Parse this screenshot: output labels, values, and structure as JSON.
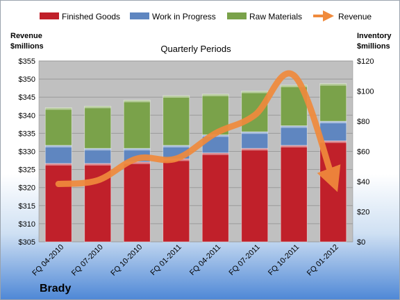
{
  "company": "Brady",
  "colors": {
    "finished_goods": "#c0202a",
    "work_in_progress": "#5f86c0",
    "raw_materials": "#7aa24a",
    "revenue": "#f08a3c",
    "plot_background": "#c0c0c0"
  },
  "chart_data": {
    "type": "bar",
    "title": "Quarterly Periods",
    "y_left_label": [
      "Revenue",
      "$millions"
    ],
    "y_right_label": [
      "Inventory",
      "$millions"
    ],
    "categories": [
      "FQ 04-2010",
      "FQ 07-2010",
      "FQ 10-2010",
      "FQ 01-2011",
      "FQ 04-2011",
      "FQ 07-2011",
      "FQ 10-2011",
      "FQ 01-2012"
    ],
    "stacked": true,
    "series": [
      {
        "name": "Finished Goods",
        "axis": "right",
        "kind": "bar",
        "values": [
          52,
          52,
          53,
          55,
          59,
          62,
          64,
          67
        ]
      },
      {
        "name": "Work in Progress",
        "axis": "right",
        "kind": "bar",
        "values": [
          12,
          10,
          9,
          9,
          12,
          11,
          13,
          13
        ]
      },
      {
        "name": "Raw Materials",
        "axis": "right",
        "kind": "bar",
        "values": [
          25,
          28,
          32,
          33,
          27,
          27,
          27,
          25
        ]
      },
      {
        "name": "Revenue",
        "axis": "left",
        "kind": "line-arrow",
        "values": [
          321,
          322,
          328,
          328,
          335,
          340,
          351,
          322
        ]
      }
    ],
    "y_left": {
      "min": 305,
      "max": 355,
      "step": 5,
      "tick_labels": [
        "$305",
        "$310",
        "$315",
        "$320",
        "$325",
        "$330",
        "$335",
        "$340",
        "$345",
        "$350",
        "$355"
      ]
    },
    "y_right": {
      "min": 0,
      "max": 120,
      "step": 20,
      "tick_labels": [
        "$0",
        "$20",
        "$40",
        "$60",
        "$80",
        "$100",
        "$120"
      ]
    },
    "legend": {
      "position": "top",
      "entries": [
        "Finished Goods",
        "Work in Progress",
        "Raw Materials",
        "Revenue"
      ]
    },
    "grid": true
  }
}
